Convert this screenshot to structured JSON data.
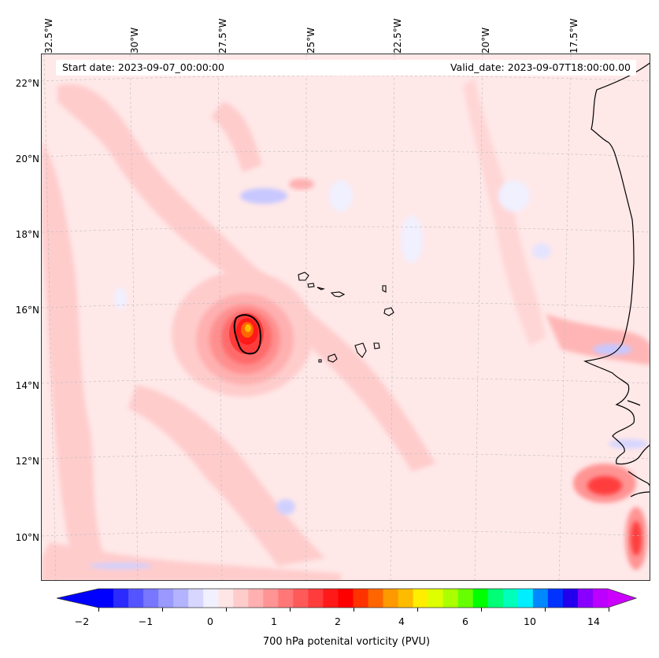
{
  "map": {
    "title_start": "Start date: 2023-09-07_00:00:00",
    "title_valid": "Valid_date: 2023-09-07T18:00:00.00",
    "longitude_labels": [
      "32.5°W",
      "30°W",
      "27.5°W",
      "25°W",
      "22.5°W",
      "20°W",
      "17.5°W"
    ],
    "latitude_labels": [
      "22°N",
      "20°N",
      "18°N",
      "16°N",
      "14°N",
      "12°N",
      "10°N"
    ],
    "gridlines": true,
    "coastline_color": "#000000"
  },
  "colorbar": {
    "label": "700 hPa potenital vorticity (PVU)",
    "tick_labels": [
      "−2",
      "−1",
      "0",
      "1",
      "2",
      "4",
      "6",
      "10",
      "14"
    ],
    "extend": "both",
    "colors": [
      "#0000ff",
      "#2b2bff",
      "#5555ff",
      "#7777ff",
      "#9999ff",
      "#b3b3ff",
      "#d6d6ff",
      "#f0f0ff",
      "#ffe6e6",
      "#ffcccc",
      "#ffb0b0",
      "#ff9494",
      "#ff7777",
      "#ff5a5a",
      "#ff3c3c",
      "#ff1a1a",
      "#ff0000",
      "#ff3300",
      "#ff6600",
      "#ff9900",
      "#ffbb00",
      "#ffee00",
      "#ddff00",
      "#aaff00",
      "#66ff00",
      "#00ff00",
      "#00ff77",
      "#00ffbb",
      "#00eeff",
      "#0088ff",
      "#0033ff",
      "#2200ee",
      "#8800ff",
      "#bb00ff"
    ],
    "under_color": "#0000ff",
    "over_color": "#cc00ff"
  }
}
